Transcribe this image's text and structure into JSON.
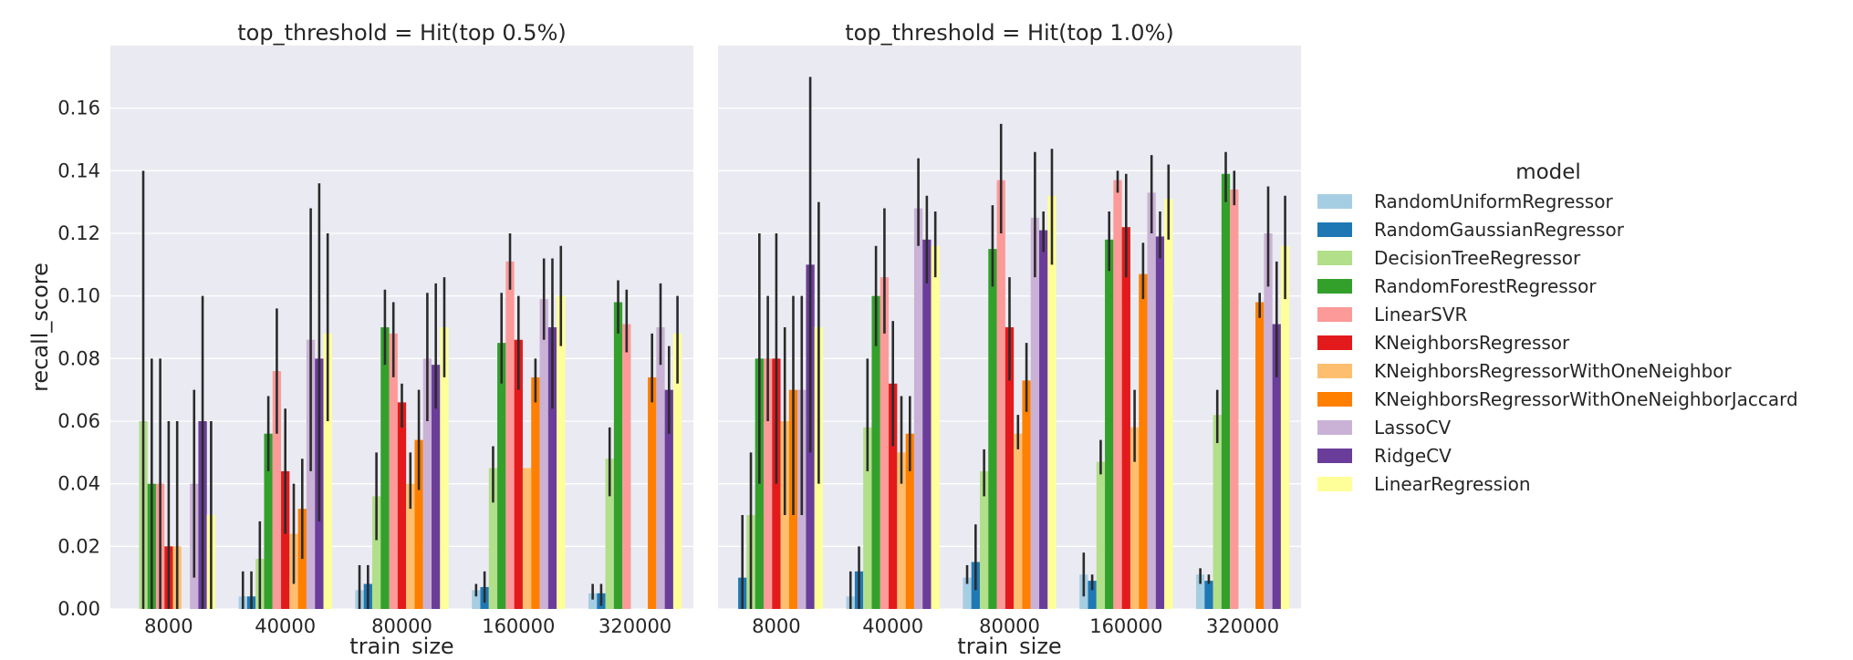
{
  "chart_data": {
    "type": "bar",
    "ylabel": "recall_score",
    "xlabel": "train_size",
    "ylim": [
      0,
      0.18
    ],
    "yticks": [
      "0.00",
      "0.02",
      "0.04",
      "0.06",
      "0.08",
      "0.10",
      "0.12",
      "0.14",
      "0.16"
    ],
    "categories": [
      "8000",
      "40000",
      "80000",
      "160000",
      "320000"
    ],
    "grid": true,
    "legend_title": "model",
    "legend_position": "right",
    "models": [
      {
        "name": "RandomUniformRegressor",
        "color": "#a6cee3"
      },
      {
        "name": "RandomGaussianRegressor",
        "color": "#1f78b4"
      },
      {
        "name": "DecisionTreeRegressor",
        "color": "#b2df8a"
      },
      {
        "name": "RandomForestRegressor",
        "color": "#33a02c"
      },
      {
        "name": "LinearSVR",
        "color": "#fb9a99"
      },
      {
        "name": "KNeighborsRegressor",
        "color": "#e31a1c"
      },
      {
        "name": "KNeighborsRegressorWithOneNeighbor",
        "color": "#fdbf6f"
      },
      {
        "name": "KNeighborsRegressorWithOneNeighborJaccard",
        "color": "#ff7f00"
      },
      {
        "name": "LassoCV",
        "color": "#cab2d6"
      },
      {
        "name": "RidgeCV",
        "color": "#6a3d9a"
      },
      {
        "name": "LinearRegression",
        "color": "#ffff99"
      }
    ],
    "panels": [
      {
        "title": "top_threshold = Hit(top 0.5%)",
        "values": [
          [
            0.0,
            0.0,
            0.06,
            0.04,
            0.04,
            0.02,
            0.02,
            0.0,
            0.04,
            0.06,
            0.03
          ],
          [
            0.004,
            0.004,
            0.016,
            0.056,
            0.076,
            0.044,
            0.024,
            0.032,
            0.086,
            0.08,
            0.088
          ],
          [
            0.006,
            0.008,
            0.036,
            0.09,
            0.088,
            0.066,
            0.04,
            0.054,
            0.08,
            0.078,
            0.09
          ],
          [
            0.006,
            0.007,
            0.045,
            0.085,
            0.111,
            0.086,
            0.045,
            0.074,
            0.099,
            0.09,
            0.1
          ],
          [
            0.005,
            0.005,
            0.048,
            0.098,
            0.091,
            0.0,
            0.0,
            0.074,
            0.09,
            0.07,
            0.088
          ]
        ],
        "errors": [
          [
            null,
            null,
            [
              0.0,
              0.14
            ],
            [
              0.0,
              0.08
            ],
            [
              0.0,
              0.08
            ],
            [
              0.0,
              0.06
            ],
            [
              0.0,
              0.06
            ],
            null,
            [
              0.01,
              0.07
            ],
            [
              0.0,
              0.1
            ],
            [
              0.0,
              0.06
            ]
          ],
          [
            [
              0.0,
              0.012
            ],
            [
              0.0,
              0.012
            ],
            [
              0.0,
              0.028
            ],
            [
              0.044,
              0.068
            ],
            [
              0.056,
              0.096
            ],
            [
              0.024,
              0.064
            ],
            [
              0.008,
              0.04
            ],
            [
              0.016,
              0.048
            ],
            [
              0.044,
              0.128
            ],
            [
              0.028,
              0.136
            ],
            [
              0.06,
              0.12
            ]
          ],
          [
            [
              0.0,
              0.014
            ],
            [
              0.0,
              0.014
            ],
            [
              0.022,
              0.05
            ],
            [
              0.078,
              0.102
            ],
            [
              0.074,
              0.098
            ],
            [
              0.058,
              0.072
            ],
            [
              0.032,
              0.05
            ],
            [
              0.038,
              0.07
            ],
            [
              0.06,
              0.101
            ],
            [
              0.064,
              0.104
            ],
            [
              0.074,
              0.106
            ]
          ],
          [
            [
              0.004,
              0.008
            ],
            [
              0.002,
              0.012
            ],
            [
              0.034,
              0.052
            ],
            [
              0.072,
              0.101
            ],
            [
              0.102,
              0.12
            ],
            [
              0.07,
              0.1
            ],
            [
              0.0,
              0.0
            ],
            [
              0.066,
              0.08
            ],
            [
              0.086,
              0.112
            ],
            [
              0.064,
              0.112
            ],
            [
              0.084,
              0.116
            ]
          ],
          [
            [
              0.003,
              0.008
            ],
            [
              0.001,
              0.008
            ],
            [
              0.036,
              0.058
            ],
            [
              0.088,
              0.105
            ],
            [
              0.082,
              0.102
            ],
            null,
            null,
            [
              0.066,
              0.088
            ],
            [
              0.078,
              0.104
            ],
            [
              0.056,
              0.084
            ],
            [
              0.072,
              0.1
            ]
          ]
        ]
      },
      {
        "title": "top_threshold = Hit(top 1.0%)",
        "values": [
          [
            0.0,
            0.01,
            0.03,
            0.08,
            0.08,
            0.08,
            0.06,
            0.07,
            0.07,
            0.11,
            0.09
          ],
          [
            0.004,
            0.012,
            0.058,
            0.1,
            0.106,
            0.072,
            0.05,
            0.056,
            0.128,
            0.118,
            0.116
          ],
          [
            0.01,
            0.015,
            0.044,
            0.115,
            0.137,
            0.09,
            0.056,
            0.073,
            0.125,
            0.121,
            0.132
          ],
          [
            0.011,
            0.009,
            0.047,
            0.118,
            0.137,
            0.122,
            0.058,
            0.107,
            0.133,
            0.119,
            0.131
          ],
          [
            0.011,
            0.009,
            0.062,
            0.139,
            0.134,
            0.0,
            0.0,
            0.098,
            0.12,
            0.091,
            0.116
          ]
        ],
        "errors": [
          [
            null,
            [
              0.0,
              0.03
            ],
            [
              0.0,
              0.05
            ],
            [
              0.04,
              0.12
            ],
            [
              0.06,
              0.1
            ],
            [
              0.04,
              0.12
            ],
            [
              0.03,
              0.09
            ],
            [
              0.03,
              0.1
            ],
            [
              0.03,
              0.1
            ],
            [
              0.05,
              0.17
            ],
            [
              0.04,
              0.13
            ]
          ],
          [
            [
              0.0,
              0.012
            ],
            [
              0.0,
              0.02
            ],
            [
              0.044,
              0.08
            ],
            [
              0.084,
              0.116
            ],
            [
              0.088,
              0.128
            ],
            [
              0.052,
              0.092
            ],
            [
              0.04,
              0.068
            ],
            [
              0.044,
              0.068
            ],
            [
              0.116,
              0.144
            ],
            [
              0.104,
              0.132
            ],
            [
              0.106,
              0.127
            ]
          ],
          [
            [
              0.008,
              0.014
            ],
            [
              0.006,
              0.027
            ],
            [
              0.036,
              0.051
            ],
            [
              0.103,
              0.129
            ],
            [
              0.12,
              0.155
            ],
            [
              0.073,
              0.106
            ],
            [
              0.051,
              0.062
            ],
            [
              0.063,
              0.085
            ],
            [
              0.106,
              0.146
            ],
            [
              0.114,
              0.127
            ],
            [
              0.11,
              0.147
            ]
          ],
          [
            [
              0.004,
              0.018
            ],
            [
              0.006,
              0.011
            ],
            [
              0.043,
              0.054
            ],
            [
              0.108,
              0.127
            ],
            [
              0.133,
              0.14
            ],
            [
              0.106,
              0.139
            ],
            [
              0.047,
              0.07
            ],
            [
              0.099,
              0.117
            ],
            [
              0.12,
              0.145
            ],
            [
              0.112,
              0.127
            ],
            [
              0.118,
              0.142
            ]
          ],
          [
            [
              0.008,
              0.013
            ],
            [
              0.008,
              0.011
            ],
            [
              0.053,
              0.07
            ],
            [
              0.13,
              0.146
            ],
            [
              0.129,
              0.14
            ],
            null,
            null,
            [
              0.093,
              0.101
            ],
            [
              0.103,
              0.135
            ],
            [
              0.074,
              0.111
            ],
            [
              0.099,
              0.132
            ]
          ]
        ]
      }
    ]
  }
}
